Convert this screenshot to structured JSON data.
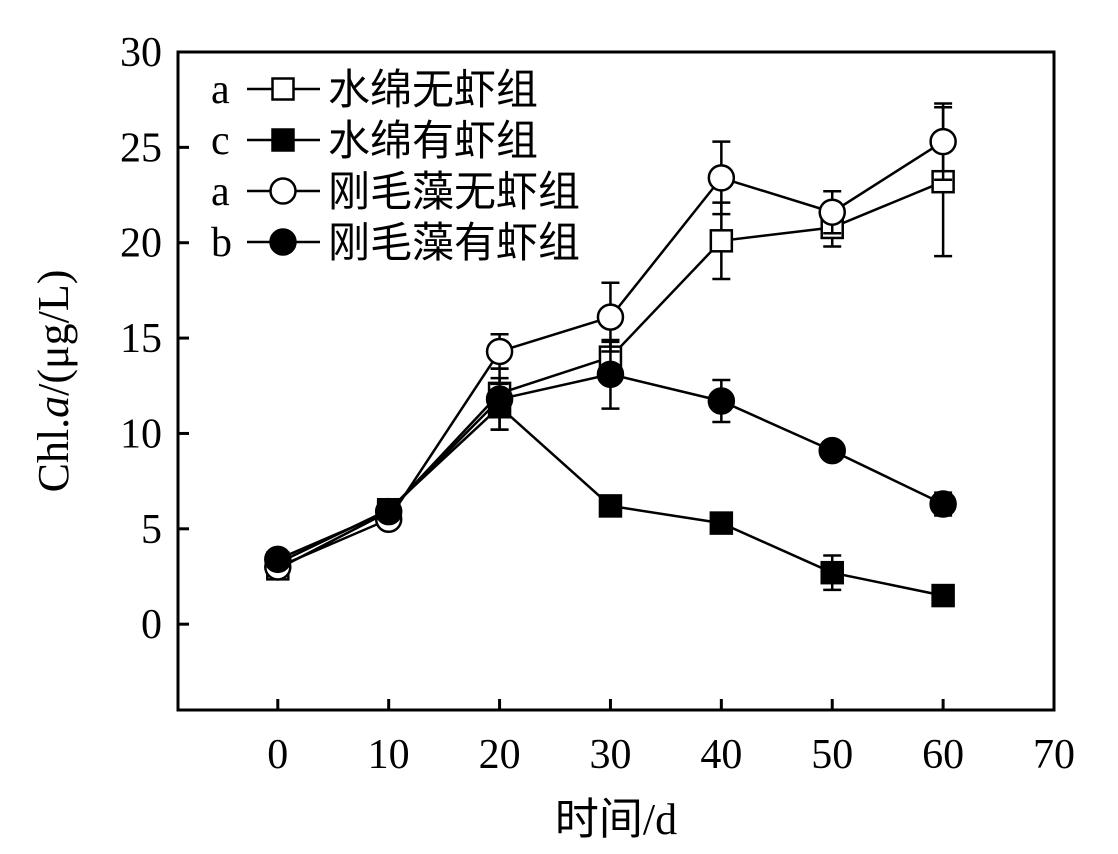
{
  "chart_data": {
    "type": "line",
    "xlabel": "时间/d",
    "ylabel_prefix": "Chl.",
    "ylabel_italic": "a",
    "ylabel_suffix": "/(μg/L)",
    "xlim": [
      -9,
      70
    ],
    "ylim": [
      -4.5,
      30
    ],
    "xticks": [
      0,
      10,
      20,
      30,
      40,
      50,
      60,
      70
    ],
    "yticks": [
      0,
      5,
      10,
      15,
      20,
      25,
      30
    ],
    "grid": false,
    "legend_position": "top-left",
    "x": [
      0,
      10,
      20,
      30,
      40,
      50,
      60
    ],
    "series": [
      {
        "name": "水绵无虾组",
        "letter": "a",
        "marker": "square",
        "filled": false,
        "values": [
          2.9,
          5.9,
          12.1,
          14.0,
          20.1,
          20.8,
          23.2
        ],
        "errors": [
          0.2,
          0.3,
          0.8,
          0.8,
          2.0,
          1.0,
          3.9
        ]
      },
      {
        "name": "水绵有虾组",
        "letter": "c",
        "marker": "square",
        "filled": true,
        "values": [
          3.2,
          6.0,
          11.4,
          6.2,
          5.3,
          2.7,
          1.5
        ],
        "errors": [
          0.2,
          0.3,
          1.2,
          0.3,
          0.3,
          0.9,
          0.2
        ]
      },
      {
        "name": "刚毛藻无虾组",
        "letter": "a",
        "marker": "circle",
        "filled": false,
        "values": [
          3.0,
          5.5,
          14.3,
          16.1,
          23.4,
          21.6,
          25.3
        ],
        "errors": [
          0.2,
          0.3,
          0.9,
          1.8,
          1.9,
          1.1,
          2.0
        ]
      },
      {
        "name": "刚毛藻有虾组",
        "letter": "b",
        "marker": "circle",
        "filled": true,
        "values": [
          3.4,
          5.9,
          11.8,
          13.1,
          11.7,
          9.1,
          6.3
        ],
        "errors": [
          0.2,
          0.3,
          1.6,
          1.8,
          1.1,
          0.2,
          0.6
        ]
      }
    ]
  }
}
